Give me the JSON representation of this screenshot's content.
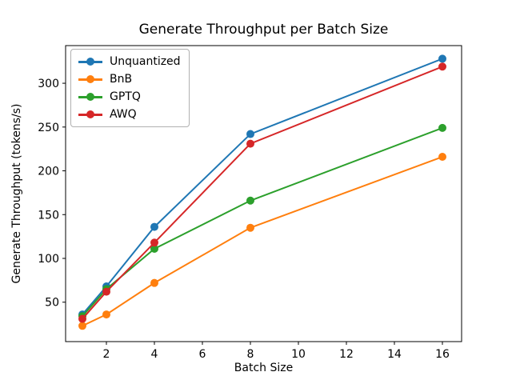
{
  "chart_data": {
    "type": "line",
    "title": "Generate Throughput per Batch Size",
    "xlabel": "Batch Size",
    "ylabel": "Generate Throughput (tokens/s)",
    "x": [
      1,
      2,
      4,
      8,
      16
    ],
    "series": [
      {
        "name": "Unquantized",
        "color": "#1f77b4",
        "values": [
          36,
          68,
          136,
          242,
          328
        ]
      },
      {
        "name": "BnB",
        "color": "#ff7f0e",
        "values": [
          23,
          36,
          72,
          135,
          216
        ]
      },
      {
        "name": "GPTQ",
        "color": "#2ca02c",
        "values": [
          34,
          65,
          111,
          166,
          249
        ]
      },
      {
        "name": "AWQ",
        "color": "#d62728",
        "values": [
          31,
          62,
          118,
          231,
          319
        ]
      }
    ],
    "xticks": [
      2,
      4,
      6,
      8,
      10,
      12,
      14,
      16
    ],
    "yticks": [
      50,
      100,
      150,
      200,
      250,
      300
    ],
    "xlim": [
      0.3,
      16.8
    ],
    "ylim": [
      5,
      343
    ],
    "legend_position": "upper left",
    "grid": false,
    "marker": "o"
  }
}
